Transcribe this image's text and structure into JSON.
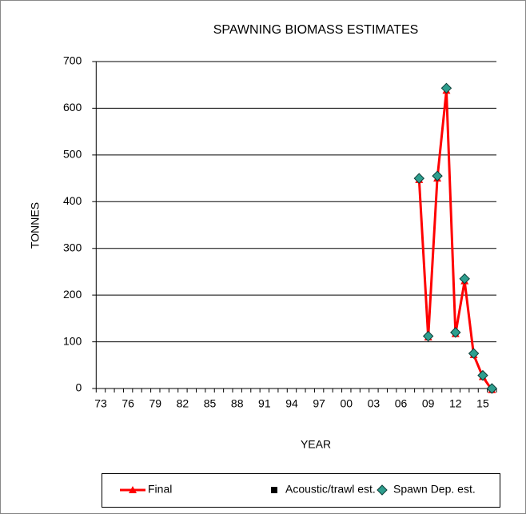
{
  "chart_data": {
    "type": "line",
    "title": "SPAWNING BIOMASS ESTIMATES",
    "x_label": "YEAR",
    "y_label": "TONNES",
    "categories": [
      "73",
      null,
      null,
      "76",
      null,
      null,
      "79",
      null,
      null,
      "82",
      null,
      null,
      "85",
      null,
      null,
      "88",
      null,
      null,
      "91",
      null,
      null,
      "94",
      null,
      null,
      "97",
      null,
      null,
      "00",
      null,
      null,
      "03",
      null,
      null,
      "06",
      null,
      null,
      "09",
      null,
      null,
      "12",
      null,
      null,
      "15",
      null
    ],
    "series": [
      {
        "name": "Final",
        "color": "#ff0000",
        "marker": "triangle",
        "values": [
          null,
          null,
          null,
          null,
          null,
          null,
          null,
          null,
          null,
          null,
          null,
          null,
          null,
          null,
          null,
          null,
          null,
          null,
          null,
          null,
          null,
          null,
          null,
          null,
          null,
          null,
          null,
          null,
          null,
          null,
          null,
          null,
          null,
          null,
          null,
          447,
          110,
          450,
          638,
          117,
          230,
          72,
          25,
          -3
        ]
      },
      {
        "name": "Acoustic/trawl est.",
        "color": "#000000",
        "marker": "square",
        "values": [
          null,
          null,
          null,
          null,
          null,
          null,
          null,
          null,
          null,
          null,
          null,
          null,
          null,
          null,
          null,
          null,
          null,
          null,
          null,
          null,
          null,
          null,
          null,
          null,
          null,
          null,
          null,
          null,
          null,
          null,
          null,
          null,
          null,
          null,
          null,
          null,
          null,
          null,
          null,
          null,
          null,
          null,
          null,
          null
        ]
      },
      {
        "name": "Spawn Dep. est.",
        "color": "#2e9e8e",
        "marker": "diamond",
        "values": [
          null,
          null,
          null,
          null,
          null,
          null,
          null,
          null,
          null,
          null,
          null,
          null,
          null,
          null,
          null,
          null,
          null,
          null,
          null,
          null,
          null,
          null,
          null,
          null,
          null,
          null,
          null,
          null,
          null,
          null,
          null,
          null,
          null,
          null,
          null,
          450,
          112,
          455,
          643,
          120,
          235,
          75,
          28,
          0
        ]
      }
    ],
    "ylim": [
      0,
      700
    ],
    "yticks": [
      0,
      100,
      200,
      300,
      400,
      500,
      600,
      700
    ],
    "grid": true,
    "legend": "bottom"
  }
}
